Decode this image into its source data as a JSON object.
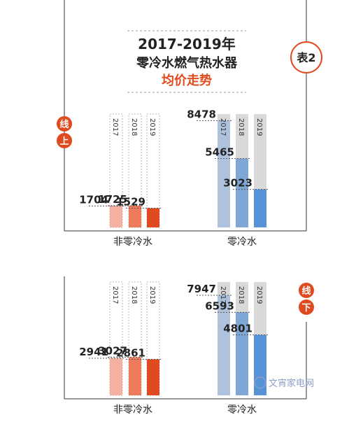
{
  "chart_data": {
    "type": "bar",
    "title": "2017-2019年",
    "subtitle_line1": "零冷水燃气热水器",
    "subtitle_line2": "均价走势",
    "tag": "表2",
    "years": [
      "2017",
      "2018",
      "2019"
    ],
    "panels": [
      {
        "channel_chars": [
          "线",
          "上"
        ],
        "groups": [
          {
            "category": "非零冷水",
            "values": [
              1704,
              1725,
              1529
            ]
          },
          {
            "category": "零冷水",
            "values": [
              8478,
              5465,
              3023
            ]
          }
        ]
      },
      {
        "channel_chars": [
          "线",
          "下"
        ],
        "groups": [
          {
            "category": "非零冷水",
            "values": [
              2941,
              3027,
              2861
            ]
          },
          {
            "category": "零冷水",
            "values": [
              7947,
              6593,
              4801
            ]
          }
        ]
      }
    ],
    "colors": {
      "non_zero_cold": [
        "#f4b0a0",
        "#ee7a5c",
        "#e04a1f"
      ],
      "zero_cold": [
        "#adc2dc",
        "#7fa7d6",
        "#5592d6"
      ],
      "accent": "#e04a1f",
      "track": "#d9d9d9"
    },
    "watermark": "文宵家电网"
  }
}
